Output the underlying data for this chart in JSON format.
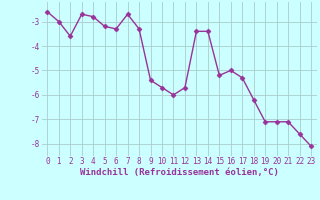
{
  "x": [
    0,
    1,
    2,
    3,
    4,
    5,
    6,
    7,
    8,
    9,
    10,
    11,
    12,
    13,
    14,
    15,
    16,
    17,
    18,
    19,
    20,
    21,
    22,
    23
  ],
  "y": [
    -2.6,
    -3.0,
    -3.6,
    -2.7,
    -2.8,
    -3.2,
    -3.3,
    -2.7,
    -3.3,
    -5.4,
    -5.7,
    -6.0,
    -5.7,
    -3.4,
    -3.4,
    -5.2,
    -5.0,
    -5.3,
    -6.2,
    -7.1,
    -7.1,
    -7.1,
    -7.6,
    -8.1
  ],
  "line_color": "#993399",
  "marker": "D",
  "marker_size": 2.5,
  "linewidth": 1.0,
  "background_color": "#ccffff",
  "grid_color": "#aacccc",
  "xlabel": "Windchill (Refroidissement éolien,°C)",
  "xlabel_color": "#993399",
  "tick_color": "#993399",
  "ylim": [
    -8.5,
    -2.2
  ],
  "xlim": [
    -0.5,
    23.5
  ],
  "yticks": [
    -8,
    -7,
    -6,
    -5,
    -4,
    -3
  ],
  "xtick_labels": [
    "0",
    "1",
    "2",
    "3",
    "4",
    "5",
    "6",
    "7",
    "8",
    "9",
    "10",
    "11",
    "12",
    "13",
    "14",
    "15",
    "16",
    "17",
    "18",
    "19",
    "20",
    "21",
    "22",
    "23"
  ],
  "axis_fontsize": 6.0,
  "tick_fontsize": 5.5,
  "xlabel_fontsize": 6.5
}
